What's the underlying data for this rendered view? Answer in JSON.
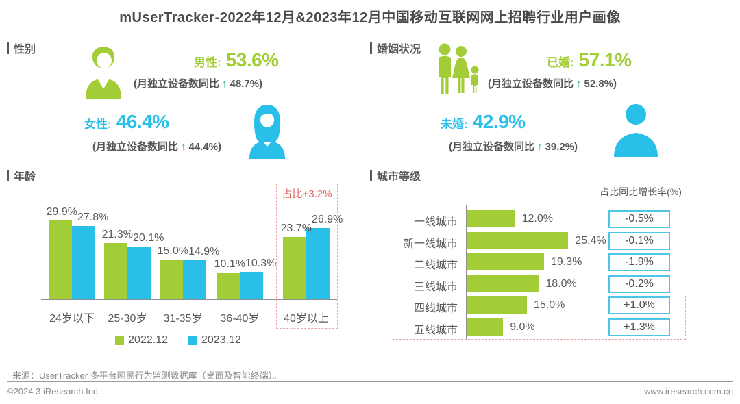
{
  "title": "mUserTracker-2022年12月&2023年12月中国移动互联网网上招聘行业用户画像",
  "colors": {
    "green": "#A3CD37",
    "blue": "#29BFE8",
    "box_border_blue": "#4EC6E6",
    "highlight_red": "#E4635C",
    "dashed_red": "#ECA3A3",
    "arrow_green": "#2FAE8E",
    "text_dark": "#595959",
    "text_gray": "#8A8A8A"
  },
  "gender": {
    "header": "性别",
    "male": {
      "label": "男性:",
      "value": "53.6%",
      "yoy_prefix": "(月独立设备数同比",
      "yoy_arrow": "↑",
      "yoy_suffix": "48.7%)"
    },
    "female": {
      "label": "女性:",
      "value": "46.4%",
      "yoy_prefix": "(月独立设备数同比",
      "yoy_arrow": "↑",
      "yoy_suffix": "44.4%)"
    }
  },
  "marital": {
    "header": "婚姻状况",
    "married": {
      "label": "已婚:",
      "value": "57.1%",
      "yoy_prefix": "(月独立设备数同比",
      "yoy_arrow": "↑",
      "yoy_suffix": "52.8%)"
    },
    "unmarried": {
      "label": "未婚:",
      "value": "42.9%",
      "yoy_prefix": "(月独立设备数同比",
      "yoy_arrow": "↑",
      "yoy_suffix": "39.2%)"
    }
  },
  "chart_data": [
    {
      "type": "bar",
      "title": "年龄",
      "unit": "%",
      "categories": [
        "24岁以下",
        "25-30岁",
        "31-35岁",
        "36-40岁",
        "40岁以上"
      ],
      "series": [
        {
          "name": "2022.12",
          "values": [
            29.9,
            21.3,
            15.0,
            10.1,
            23.7
          ]
        },
        {
          "name": "2023.12",
          "values": [
            27.8,
            20.1,
            14.9,
            10.3,
            26.9
          ]
        }
      ],
      "annotation": {
        "text": "占比+3.2%",
        "target": "40岁以上"
      },
      "ylim": [
        0,
        32
      ],
      "grid": false,
      "legend_position": "bottom"
    },
    {
      "type": "bar-horizontal",
      "title": "城市等级",
      "unit": "%",
      "categories": [
        "一线城市",
        "新一线城市",
        "二线城市",
        "三线城市",
        "四线城市",
        "五线城市"
      ],
      "values": [
        12.0,
        25.4,
        19.3,
        18.0,
        15.0,
        9.0
      ],
      "growth_header": "占比同比增长率(%)",
      "growth_values": [
        "-0.5%",
        "-0.1%",
        "-1.9%",
        "-0.2%",
        "+1.0%",
        "+1.3%"
      ],
      "highlighted_categories": [
        "四线城市",
        "五线城市"
      ],
      "xlim": [
        0,
        30
      ],
      "grid": false,
      "legend_position": "none"
    }
  ],
  "footer": {
    "source": "来源：UserTracker 多平台网民行为监测数据库（桌面及智能终端）。",
    "copyright": "©2024.3 iResearch Inc.",
    "website": "www.iresearch.com.cn"
  }
}
